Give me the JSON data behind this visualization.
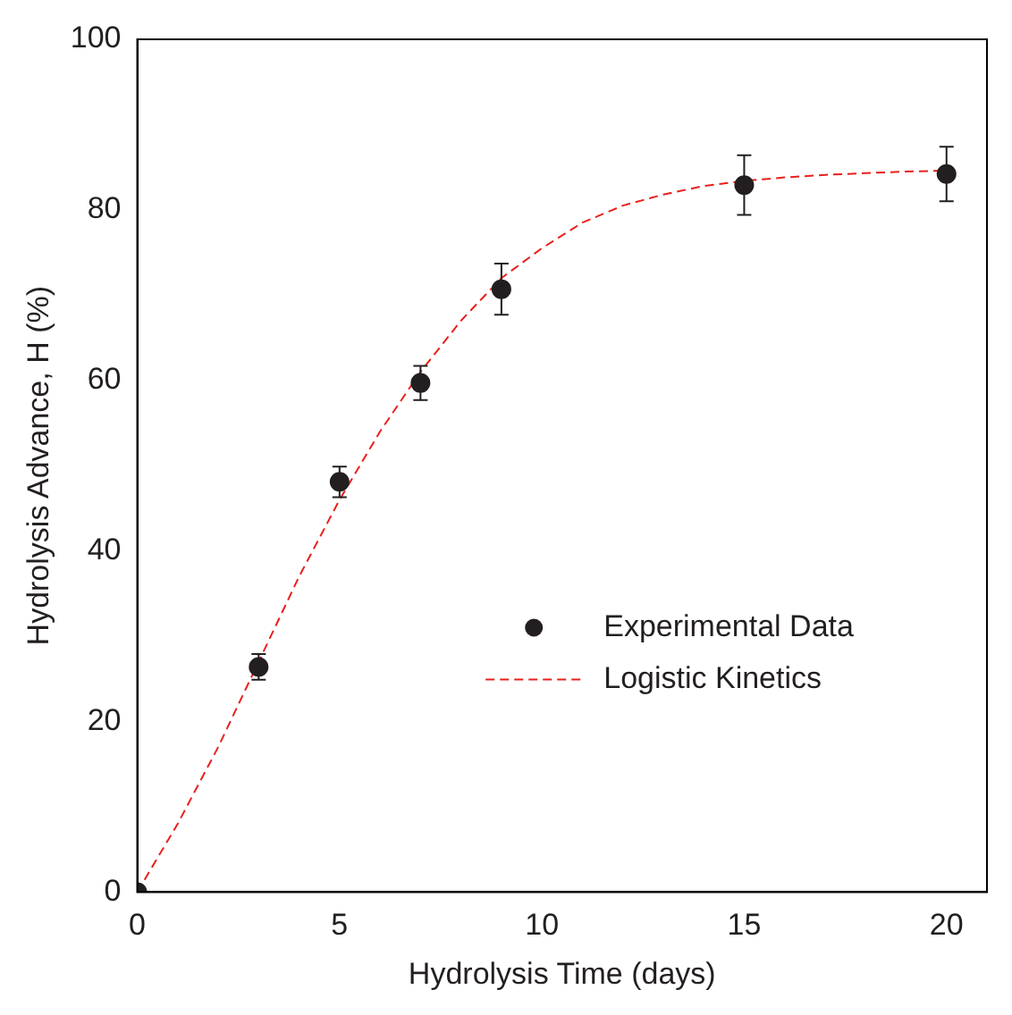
{
  "chart_data": {
    "type": "scatter",
    "xlabel": "Hydrolysis Time (days)",
    "ylabel": "Hydrolysis Advance, H (%)",
    "xlim": [
      0,
      21
    ],
    "xticks": [
      0,
      5,
      10,
      15,
      20
    ],
    "ylim": [
      0,
      100
    ],
    "yticks": [
      0,
      20,
      40,
      60,
      80,
      100
    ],
    "grid": false,
    "legend": "right",
    "series": [
      {
        "name": "Experimental Data",
        "type": "scatter",
        "color": "#231f20",
        "marker": "circle",
        "x": [
          0,
          3,
          5,
          7,
          9,
          15,
          20
        ],
        "values": [
          0,
          26.4,
          48.1,
          59.7,
          70.7,
          82.9,
          84.2
        ],
        "errors": [
          null,
          1.5,
          1.8,
          2,
          3,
          3.5,
          3.2
        ]
      },
      {
        "name": "Logistic Kinetics",
        "type": "line",
        "color": "#e8201c",
        "marker": "none",
        "line_style": "dashed",
        "x": [
          0,
          1,
          2,
          3,
          4,
          5,
          6,
          7,
          8,
          9,
          10,
          11,
          12,
          13,
          14,
          15,
          16,
          17,
          18,
          19,
          20
        ],
        "values": [
          0,
          8,
          17,
          27,
          37,
          46,
          54,
          61,
          67,
          72,
          75.5,
          78.5,
          80.5,
          81.8,
          82.8,
          83.4,
          83.8,
          84.1,
          84.3,
          84.5,
          84.6
        ]
      }
    ]
  }
}
